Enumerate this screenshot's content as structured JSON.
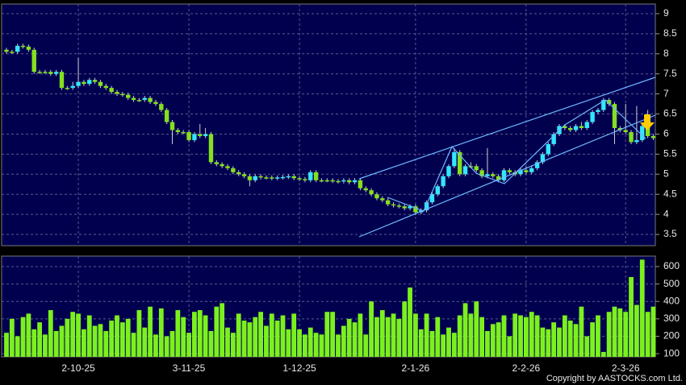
{
  "chart_data": [
    {
      "type": "candlestick",
      "up_color": "#33e5ff",
      "down_color": "#84e01e",
      "open": [
        8.1,
        8.05,
        8.05,
        8.2,
        8.18,
        8.1,
        7.55,
        7.55,
        7.55,
        7.5,
        7.55,
        7.15,
        7.15,
        7.2,
        7.3,
        7.25,
        7.35,
        7.3,
        7.2,
        7.15,
        7.05,
        7.0,
        6.98,
        6.9,
        6.85,
        6.85,
        6.9,
        6.8,
        6.75,
        6.6,
        6.3,
        6.1,
        6.05,
        6.05,
        5.85,
        6.0,
        5.95,
        6.0,
        5.3,
        5.25,
        5.2,
        5.15,
        5.05,
        5.0,
        4.95,
        4.85,
        4.95,
        4.92,
        4.92,
        4.9,
        4.92,
        4.93,
        4.95,
        4.9,
        4.88,
        4.85,
        5.05,
        4.85,
        4.85,
        4.85,
        4.83,
        4.82,
        4.85,
        4.8,
        4.85,
        4.65,
        4.6,
        4.5,
        4.4,
        4.35,
        4.25,
        4.22,
        4.2,
        4.15,
        4.2,
        4.05,
        4.1,
        4.3,
        4.5,
        4.7,
        4.95,
        5.2,
        5.55,
        5.0,
        5.2,
        5.2,
        5.1,
        4.95,
        5.0,
        4.95,
        4.85,
        5.1,
        5.05,
        5.0,
        5.1,
        5.05,
        5.15,
        5.3,
        5.5,
        5.75,
        6.0,
        6.2,
        6.15,
        6.1,
        6.2,
        6.15,
        6.3,
        6.55,
        6.6,
        6.85,
        6.75,
        6.15,
        6.1,
        6.05,
        5.8,
        5.85,
        6.2,
        5.95
      ],
      "high": [
        8.15,
        8.1,
        8.25,
        8.25,
        8.23,
        8.15,
        7.6,
        7.6,
        7.6,
        7.6,
        7.6,
        7.2,
        7.3,
        7.9,
        7.35,
        7.4,
        7.4,
        7.35,
        7.25,
        7.2,
        7.1,
        7.05,
        7.03,
        6.95,
        6.9,
        6.95,
        6.95,
        6.85,
        6.8,
        6.65,
        6.35,
        6.15,
        6.1,
        6.1,
        6.05,
        6.25,
        6.15,
        6.05,
        5.35,
        5.3,
        5.25,
        5.2,
        5.1,
        5.05,
        5.0,
        5.0,
        5.0,
        4.97,
        4.97,
        4.97,
        4.98,
        5.0,
        5.0,
        4.95,
        4.93,
        5.1,
        5.1,
        4.9,
        4.9,
        4.9,
        4.88,
        4.9,
        4.9,
        4.9,
        4.9,
        4.7,
        4.65,
        4.55,
        4.45,
        4.4,
        4.3,
        4.27,
        4.25,
        4.25,
        4.25,
        4.15,
        4.35,
        4.55,
        4.75,
        5.0,
        5.25,
        5.65,
        5.6,
        5.25,
        5.3,
        5.25,
        5.15,
        5.65,
        5.05,
        5.0,
        5.15,
        5.15,
        5.1,
        5.15,
        5.2,
        5.2,
        5.35,
        5.55,
        5.8,
        6.05,
        6.25,
        6.25,
        6.2,
        6.25,
        6.3,
        6.35,
        6.6,
        6.65,
        6.9,
        6.9,
        6.8,
        6.2,
        6.75,
        6.1,
        6.7,
        6.25,
        6.6,
        6.0
      ],
      "low": [
        8.0,
        8.0,
        8.0,
        8.13,
        8.05,
        7.5,
        7.5,
        7.5,
        7.45,
        7.45,
        7.1,
        7.1,
        7.1,
        7.15,
        7.2,
        7.2,
        7.25,
        7.15,
        7.1,
        7.0,
        6.95,
        6.93,
        6.85,
        6.8,
        6.8,
        6.8,
        6.75,
        6.7,
        6.55,
        6.25,
        5.75,
        6.0,
        6.0,
        5.8,
        5.8,
        5.9,
        5.9,
        5.25,
        5.2,
        5.15,
        5.1,
        5.0,
        4.95,
        4.9,
        4.7,
        4.8,
        4.87,
        4.87,
        4.85,
        4.85,
        4.87,
        4.88,
        4.85,
        4.83,
        4.8,
        4.8,
        4.8,
        4.8,
        4.8,
        4.78,
        4.77,
        4.77,
        4.75,
        4.75,
        4.6,
        4.55,
        4.45,
        4.35,
        4.3,
        4.2,
        4.17,
        4.15,
        4.1,
        4.1,
        3.98,
        4.0,
        4.05,
        4.25,
        4.45,
        4.65,
        4.9,
        5.15,
        4.95,
        4.95,
        5.15,
        5.05,
        4.9,
        4.9,
        4.9,
        4.8,
        4.8,
        5.0,
        4.95,
        4.95,
        5.0,
        5.0,
        5.1,
        5.25,
        5.45,
        5.7,
        5.95,
        6.1,
        6.05,
        6.05,
        6.1,
        6.1,
        6.25,
        6.5,
        6.55,
        6.7,
        5.75,
        6.05,
        6.0,
        5.75,
        5.75,
        5.8,
        5.9,
        5.85
      ],
      "close": [
        8.05,
        8.05,
        8.2,
        8.18,
        8.1,
        7.55,
        7.55,
        7.55,
        7.5,
        7.55,
        7.15,
        7.15,
        7.2,
        7.3,
        7.25,
        7.35,
        7.3,
        7.2,
        7.15,
        7.05,
        7.0,
        6.98,
        6.9,
        6.85,
        6.85,
        6.9,
        6.8,
        6.75,
        6.6,
        6.3,
        6.1,
        6.05,
        6.05,
        5.85,
        6.0,
        5.95,
        6.0,
        5.3,
        5.25,
        5.2,
        5.15,
        5.05,
        5.0,
        4.95,
        4.85,
        4.95,
        4.92,
        4.92,
        4.9,
        4.92,
        4.93,
        4.95,
        4.9,
        4.88,
        4.85,
        5.05,
        4.85,
        4.85,
        4.85,
        4.83,
        4.82,
        4.85,
        4.8,
        4.85,
        4.65,
        4.6,
        4.5,
        4.4,
        4.35,
        4.25,
        4.22,
        4.2,
        4.15,
        4.2,
        4.05,
        4.1,
        4.3,
        4.5,
        4.7,
        4.95,
        5.2,
        5.55,
        5.0,
        5.2,
        5.2,
        5.1,
        4.95,
        5.0,
        4.95,
        4.85,
        5.1,
        5.05,
        5.0,
        5.1,
        5.05,
        5.15,
        5.3,
        5.5,
        5.75,
        6.0,
        6.2,
        6.15,
        6.1,
        6.2,
        6.15,
        6.3,
        6.55,
        6.6,
        6.85,
        6.75,
        6.15,
        6.1,
        6.05,
        5.8,
        5.85,
        6.2,
        5.95,
        5.9
      ],
      "ylim": [
        3.22,
        9.24
      ],
      "yticks": [
        3.5,
        4,
        4.5,
        5,
        5.5,
        6,
        6.5,
        7,
        7.5,
        8,
        8.5,
        9
      ],
      "grid": true
    },
    {
      "type": "bar",
      "color": "#7cf01e",
      "categories": [
        null,
        null,
        null,
        null,
        null,
        null,
        null,
        null,
        null,
        null,
        null,
        null,
        null,
        "2-10-25",
        null,
        null,
        null,
        null,
        null,
        null,
        null,
        null,
        null,
        null,
        null,
        null,
        null,
        null,
        null,
        null,
        null,
        null,
        null,
        "3-11-25",
        null,
        null,
        null,
        null,
        null,
        null,
        null,
        null,
        null,
        null,
        null,
        null,
        null,
        null,
        null,
        null,
        null,
        null,
        null,
        "1-12-25",
        null,
        null,
        null,
        null,
        null,
        null,
        null,
        null,
        null,
        null,
        null,
        null,
        null,
        null,
        null,
        null,
        null,
        null,
        null,
        null,
        "2-1-26",
        null,
        null,
        null,
        null,
        null,
        null,
        null,
        null,
        null,
        null,
        null,
        null,
        null,
        null,
        null,
        null,
        null,
        null,
        null,
        "2-2-26",
        null,
        null,
        null,
        null,
        null,
        null,
        null,
        null,
        null,
        null,
        null,
        null,
        null,
        null,
        null,
        null,
        null,
        "2-3-26",
        null,
        null,
        null,
        null,
        null
      ],
      "values": [
        220,
        300,
        200,
        310,
        330,
        240,
        280,
        210,
        350,
        230,
        260,
        300,
        340,
        330,
        240,
        320,
        260,
        270,
        230,
        290,
        320,
        280,
        300,
        220,
        350,
        250,
        370,
        210,
        360,
        200,
        230,
        350,
        310,
        220,
        340,
        350,
        320,
        230,
        370,
        390,
        250,
        220,
        330,
        290,
        280,
        310,
        340,
        260,
        330,
        290,
        320,
        240,
        330,
        240,
        210,
        250,
        220,
        210,
        340,
        340,
        210,
        260,
        300,
        280,
        330,
        210,
        400,
        310,
        350,
        310,
        330,
        300,
        400,
        480,
        330,
        240,
        330,
        230,
        310,
        210,
        250,
        220,
        320,
        390,
        330,
        400,
        310,
        230,
        270,
        280,
        320,
        200,
        330,
        320,
        310,
        340,
        320,
        250,
        240,
        280,
        250,
        320,
        290,
        270,
        370,
        200,
        280,
        320,
        110,
        340,
        370,
        360,
        340,
        540,
        380,
        640,
        340,
        370
      ],
      "ylim": [
        82,
        660
      ],
      "yticks": [
        100,
        200,
        300,
        400,
        500,
        600
      ],
      "grid": true
    }
  ],
  "footer": "Copyright by AASTOCKS.com Ltd."
}
